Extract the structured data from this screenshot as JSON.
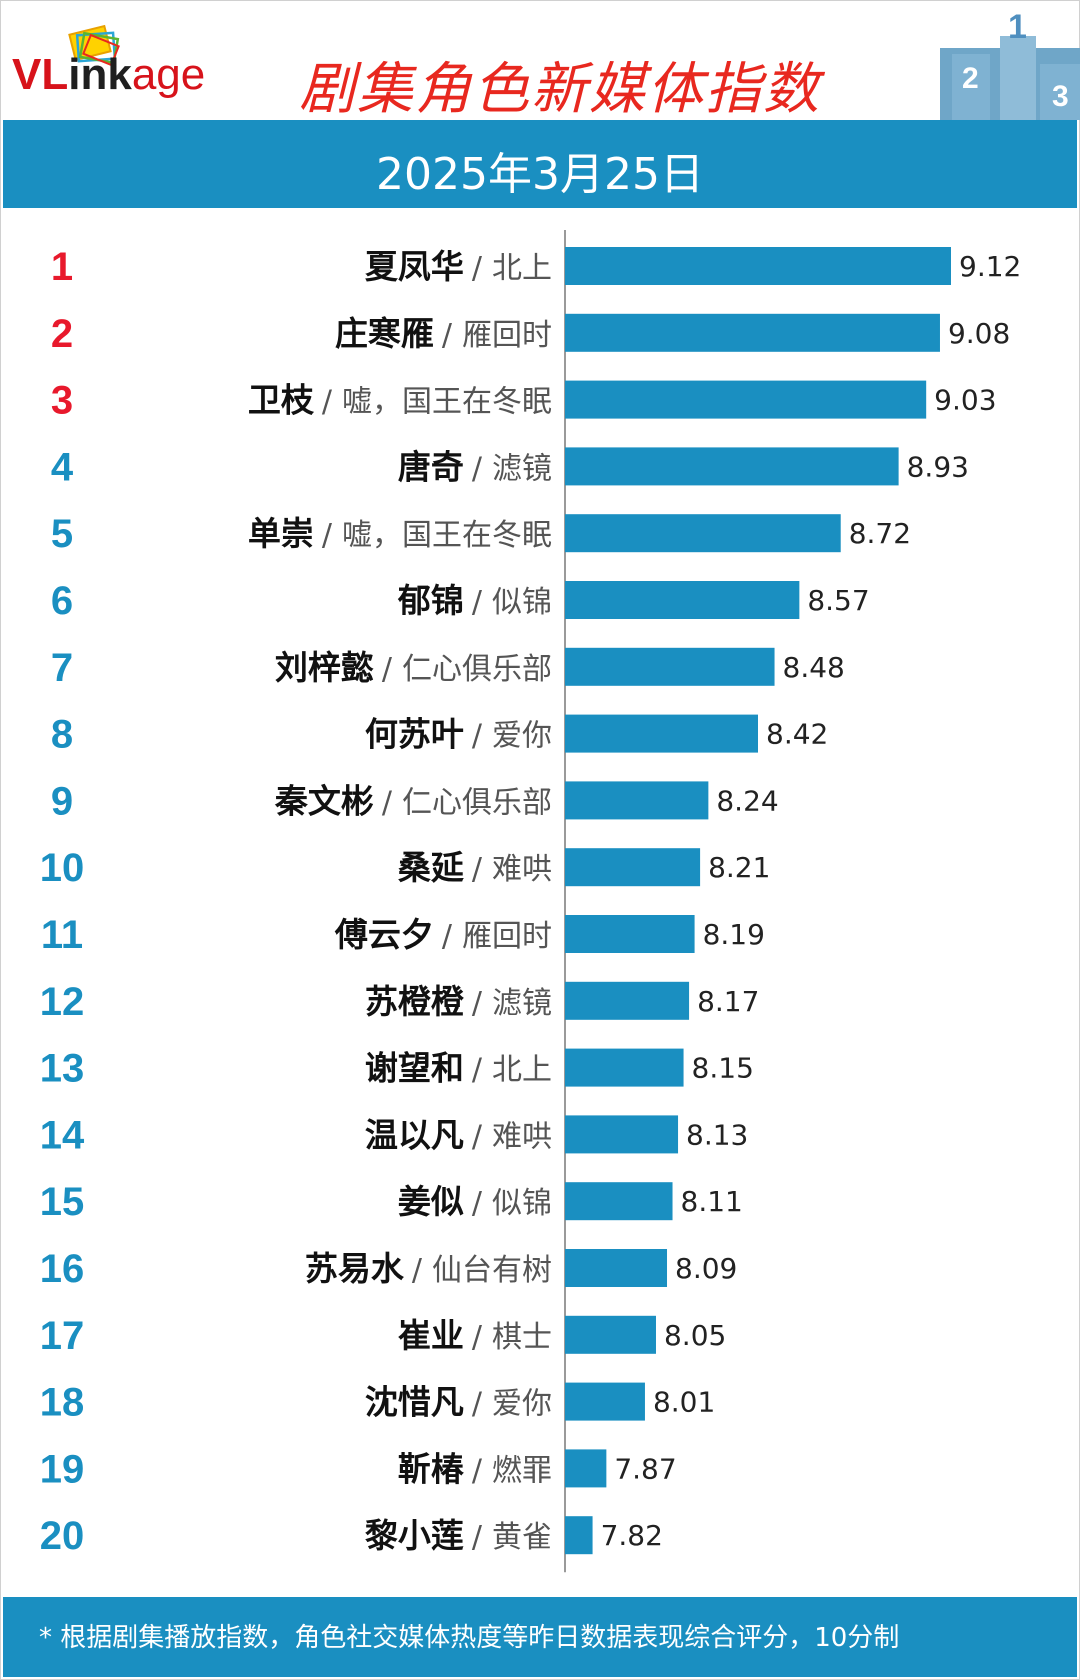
{
  "header": {
    "logo_parts": [
      "VL",
      "ink",
      "age"
    ],
    "title": "剧集角色新媒体指数",
    "date": "2025年3月25日",
    "podium_digits": [
      "2",
      "1",
      "3"
    ]
  },
  "footer": {
    "note": "* 根据剧集播放指数，角色社交媒体热度等昨日数据表现综合评分，10分制"
  },
  "colors": {
    "accent": "#1a8fc1",
    "bar": "#1a8fc1",
    "rank_top": "#e8192c",
    "rank_other": "#1a8fc1",
    "title": "#e8281f"
  },
  "chart_data": {
    "type": "bar",
    "orientation": "horizontal",
    "title": "剧集角色新媒体指数",
    "subtitle": "2025年3月25日",
    "ranks": [
      "1",
      "2",
      "3",
      "4",
      "5",
      "6",
      "7",
      "8",
      "9",
      "10",
      "11",
      "12",
      "13",
      "14",
      "15",
      "16",
      "17",
      "18",
      "19",
      "20"
    ],
    "categories": [
      {
        "character": "夏凤华",
        "drama": "北上"
      },
      {
        "character": "庄寒雁",
        "drama": "雁回时"
      },
      {
        "character": "卫枝",
        "drama": "嘘，国王在冬眠"
      },
      {
        "character": "唐奇",
        "drama": "滤镜"
      },
      {
        "character": "单崇",
        "drama": "嘘，国王在冬眠"
      },
      {
        "character": "郁锦",
        "drama": "似锦"
      },
      {
        "character": "刘梓懿",
        "drama": "仁心俱乐部"
      },
      {
        "character": "何苏叶",
        "drama": "爱你"
      },
      {
        "character": "秦文彬",
        "drama": "仁心俱乐部"
      },
      {
        "character": "桑延",
        "drama": "难哄"
      },
      {
        "character": "傅云夕",
        "drama": "雁回时"
      },
      {
        "character": "苏橙橙",
        "drama": "滤镜"
      },
      {
        "character": "谢望和",
        "drama": "北上"
      },
      {
        "character": "温以凡",
        "drama": "难哄"
      },
      {
        "character": "姜似",
        "drama": "似锦"
      },
      {
        "character": "苏易水",
        "drama": "仙台有树"
      },
      {
        "character": "崔业",
        "drama": "棋士"
      },
      {
        "character": "沈惜凡",
        "drama": "爱你"
      },
      {
        "character": "靳椿",
        "drama": "燃罪"
      },
      {
        "character": "黎小莲",
        "drama": "黄雀"
      }
    ],
    "values": [
      9.12,
      9.08,
      9.03,
      8.93,
      8.72,
      8.57,
      8.48,
      8.42,
      8.24,
      8.21,
      8.19,
      8.17,
      8.15,
      8.13,
      8.11,
      8.09,
      8.05,
      8.01,
      7.87,
      7.82
    ],
    "value_labels": [
      "9.12",
      "9.08",
      "9.03",
      "8.93",
      "8.72",
      "8.57",
      "8.48",
      "8.42",
      "8.24",
      "8.21",
      "8.19",
      "8.17",
      "8.15",
      "8.13",
      "8.11",
      "8.09",
      "8.05",
      "8.01",
      "7.87",
      "7.82"
    ],
    "xlim": [
      7.72,
      9.12
    ],
    "grid": false,
    "legend": "none"
  }
}
